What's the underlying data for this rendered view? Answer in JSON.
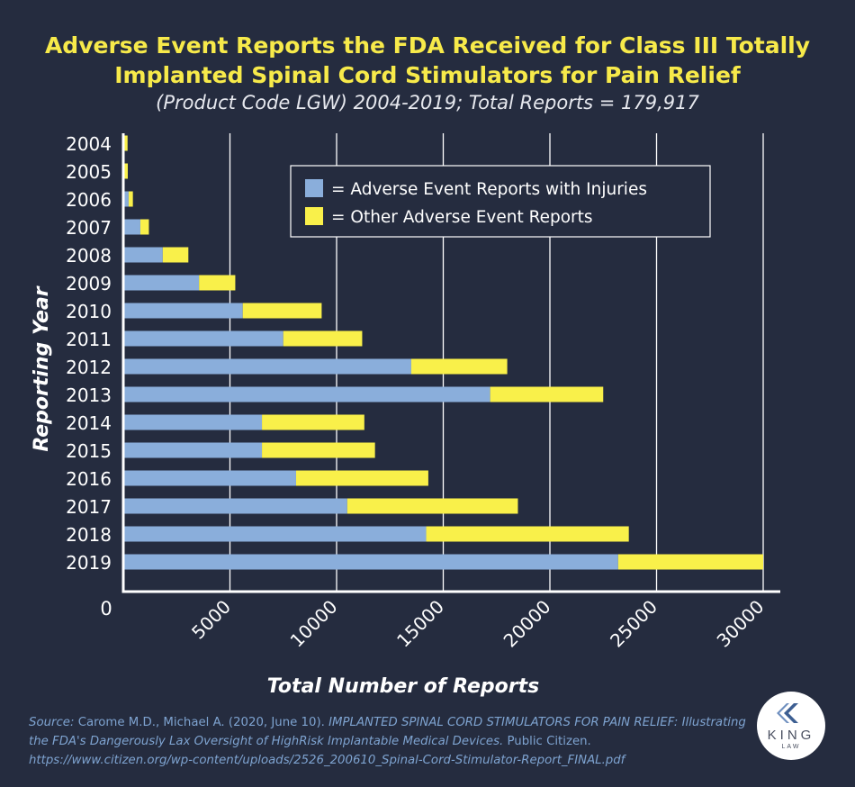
{
  "chart_data": {
    "type": "bar",
    "orientation": "horizontal",
    "stacked": true,
    "title_line1": "Adverse Event Reports the FDA Received for Class III Totally",
    "title_line2": "Implanted Spinal Cord Stimulators for Pain Relief",
    "subtitle": "(Product Code LGW) 2004-2019; Total Reports = 179,917",
    "xlabel": "Total Number of Reports",
    "ylabel": "Reporting Year",
    "xlim": [
      0,
      30000
    ],
    "xticks": [
      5000,
      10000,
      15000,
      20000,
      25000,
      30000
    ],
    "zero_label": "0",
    "categories": [
      "2004",
      "2005",
      "2006",
      "2007",
      "2008",
      "2009",
      "2010",
      "2011",
      "2012",
      "2013",
      "2014",
      "2015",
      "2016",
      "2017",
      "2018",
      "2019"
    ],
    "series": [
      {
        "name": "= Adverse Event Reports with Injuries",
        "color": "#8aaedb",
        "values": [
          50,
          60,
          250,
          800,
          1850,
          3550,
          5600,
          7500,
          13500,
          17200,
          6500,
          6500,
          8100,
          10500,
          14200,
          23200
        ]
      },
      {
        "name": "= Other Adverse Event Reports",
        "color": "#f9f04a",
        "values": [
          150,
          150,
          200,
          400,
          1200,
          1700,
          3700,
          3700,
          4500,
          5300,
          4800,
          5300,
          6200,
          8000,
          9500,
          6800
        ]
      }
    ],
    "legend_position": "top-right",
    "grid": true
  },
  "source": {
    "label": "Source:",
    "text": "Carome M.D., Michael A. (2020, June 10).",
    "title": "IMPLANTED SPINAL CORD STIMULATORS FOR PAIN RELIEF: Illustrating the FDA's Dangerously Lax Oversight of HighRisk Implantable Medical Devices.",
    "publisher": "Public Citizen.",
    "url": "https://www.citizen.org/wp-content/uploads/2526_200610_Spinal-Cord-Stimulator-Report_FINAL.pdf"
  },
  "logo": {
    "name": "KING",
    "sub": "LAW"
  }
}
